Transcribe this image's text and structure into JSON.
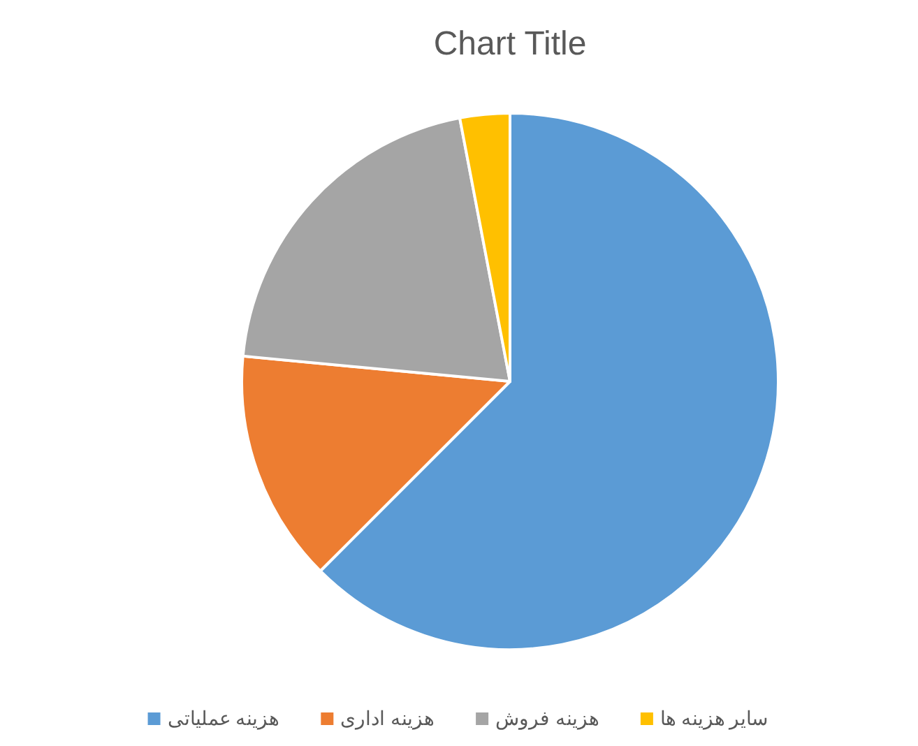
{
  "chart_data": {
    "type": "pie",
    "title": "Chart Title",
    "categories": [
      "هزینه عملیاتی",
      "هزینه اداری",
      "هزینه فروش",
      "سایر هزینه ها"
    ],
    "values": [
      62.5,
      14,
      20.5,
      3
    ],
    "colors": [
      "#5b9bd5",
      "#ed7d31",
      "#a5a5a5",
      "#ffc000"
    ],
    "legend": "bottom"
  }
}
